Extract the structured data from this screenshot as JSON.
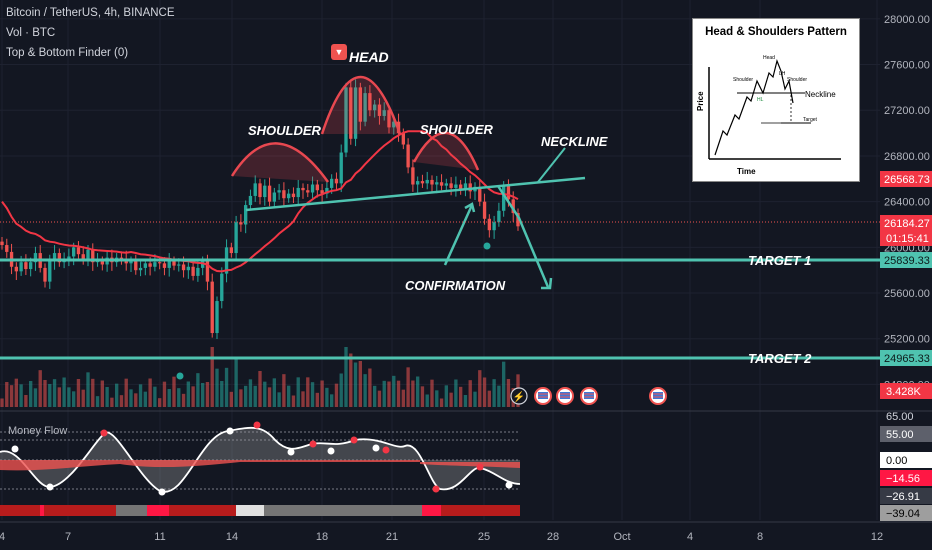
{
  "header": {
    "symbol": "Bitcoin / TetherUS, 4h, BINANCE",
    "vol": "Vol · BTC",
    "indicator": "Top & Bottom Finder (0)"
  },
  "colors": {
    "bg": "#131722",
    "up": "#26a69a",
    "down": "#ef5350",
    "ma": "#f23645",
    "pattern": "#e84850",
    "neckline": "#4fc3b0",
    "target": "#4fc3b0"
  },
  "annotations": {
    "head": "HEAD",
    "shoulder_left": "SHOULDER",
    "shoulder_right": "SHOULDER",
    "neckline": "NECKLINE",
    "confirmation": "CONFIRMATION",
    "target1": "TARGET 1",
    "target2": "TARGET 2"
  },
  "inset": {
    "title": "Head & Shoulders Pattern",
    "head": "Head",
    "shoulder_left": "Shoulder",
    "shoulder_right": "Shoulder",
    "neckline": "Neckline",
    "target": "Target",
    "hl": "HL",
    "lh": "LH",
    "price": "Price",
    "time": "Time"
  },
  "price_axis": [
    "28000.00",
    "27600.00",
    "27200.00",
    "26800.00",
    "26400.00",
    "26000.00",
    "25600.00",
    "25200.00",
    "24800.00"
  ],
  "price_tags": {
    "ma": "26568.73",
    "last": "26184.27",
    "countdown": "01:15:41",
    "target1": "25839.33",
    "target2": "24965.33",
    "volume": "3.428K"
  },
  "money_flow": {
    "title": "Money Flow",
    "levels": [
      "65.00",
      "55.00",
      "0.00",
      "−14.56",
      "−26.91",
      "−39.04"
    ]
  },
  "time_axis": [
    "4",
    "7",
    "11",
    "14",
    "18",
    "21",
    "25",
    "28",
    "Oct",
    "4",
    "8",
    "12"
  ],
  "chart_data": {
    "type": "candlestick",
    "title": "Bitcoin / TetherUS, 4h, BINANCE",
    "x_ticks": [
      "4",
      "7",
      "11",
      "14",
      "18",
      "21",
      "25",
      "28",
      "Oct",
      "4",
      "8",
      "12"
    ],
    "y_ticks": [
      24800,
      25200,
      25600,
      26000,
      26400,
      26800,
      27200,
      27600,
      28000
    ],
    "ylim": [
      24620,
      28130
    ],
    "last_price": 26184.27,
    "moving_average": 26568.73,
    "target_1": 25839.33,
    "target_2": 24965.33,
    "volume_last": "3.428K",
    "pattern": "head and shoulders",
    "closes": [
      26020,
      25960,
      25830,
      25790,
      25870,
      25810,
      25870,
      25950,
      25820,
      25700,
      25880,
      25950,
      25870,
      25900,
      25920,
      26000,
      25940,
      25900,
      25980,
      25870,
      25880,
      25850,
      25910,
      25870,
      25910,
      25900,
      25860,
      25880,
      25800,
      25820,
      25860,
      25830,
      25870,
      25860,
      25820,
      25880,
      25840,
      25850,
      25800,
      25830,
      25750,
      25820,
      25880,
      25700,
      25250,
      25530,
      25770,
      26000,
      25950,
      26220,
      26200,
      26370,
      26450,
      26560,
      26440,
      26540,
      26400,
      26480,
      26500,
      26430,
      26470,
      26440,
      26520,
      26500,
      26480,
      26550,
      26500,
      26470,
      26520,
      26600,
      26560,
      26830,
      27400,
      26950,
      27400,
      27100,
      27350,
      27200,
      27250,
      27150,
      27200,
      27050,
      27100,
      27000,
      26900,
      26700,
      26550,
      26580,
      26560,
      26590,
      26550,
      26570,
      26540,
      26560,
      26520,
      26550,
      26500,
      26560,
      26490,
      26530,
      26400,
      26250,
      26150,
      26220,
      26320,
      26540,
      26420,
      26300,
      26184
    ]
  }
}
